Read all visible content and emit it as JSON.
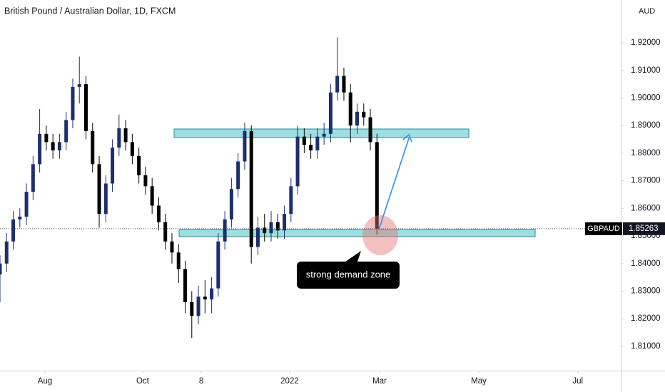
{
  "chart_data": {
    "type": "candlestick",
    "title": "British Pound / Australian Dollar, 1D, FXCM",
    "currency": "AUD",
    "symbol": "GBPAUD",
    "last_price": 1.85263,
    "annotation": "strong demand zone",
    "up_color": "#1c2f6e",
    "down_color": "#000000",
    "x": [
      0,
      3,
      6,
      9,
      12,
      15,
      18,
      21,
      24,
      27,
      30,
      33,
      36,
      39,
      42,
      45,
      48,
      51,
      54,
      57,
      60,
      63,
      66,
      69,
      72,
      75,
      78,
      81,
      84,
      87,
      90,
      93,
      96,
      99,
      102,
      105,
      108,
      111,
      114,
      117,
      120,
      123,
      126,
      129,
      132,
      135,
      138,
      141,
      144,
      147,
      150,
      153,
      156,
      159,
      162,
      165,
      168,
      171
    ],
    "open": [
      1.836,
      1.84,
      1.848,
      1.856,
      1.857,
      1.866,
      1.876,
      1.887,
      1.884,
      1.881,
      1.884,
      1.892,
      1.904,
      1.905,
      1.888,
      1.876,
      1.858,
      1.869,
      1.882,
      1.889,
      1.884,
      1.879,
      1.872,
      1.868,
      1.861,
      1.855,
      1.848,
      1.844,
      1.838,
      1.826,
      1.821,
      1.828,
      1.827,
      1.831,
      1.848,
      1.856,
      1.867,
      1.877,
      1.888,
      1.846,
      1.853,
      1.851,
      1.855,
      1.852,
      1.858,
      1.868,
      1.886,
      1.883,
      1.881,
      1.886,
      1.887,
      1.902,
      1.908,
      1.902,
      1.89,
      1.895,
      1.893,
      1.884
    ],
    "high": [
      1.843,
      1.851,
      1.859,
      1.86,
      1.869,
      1.879,
      1.896,
      1.89,
      1.887,
      1.887,
      1.895,
      1.907,
      1.915,
      1.908,
      1.891,
      1.879,
      1.872,
      1.885,
      1.894,
      1.892,
      1.887,
      1.882,
      1.875,
      1.871,
      1.864,
      1.858,
      1.851,
      1.847,
      1.841,
      1.83,
      1.832,
      1.834,
      1.835,
      1.851,
      1.859,
      1.871,
      1.88,
      1.891,
      1.89,
      1.857,
      1.858,
      1.859,
      1.858,
      1.861,
      1.871,
      1.89,
      1.889,
      1.887,
      1.889,
      1.891,
      1.905,
      1.922,
      1.911,
      1.905,
      1.898,
      1.898,
      1.896,
      1.887
    ],
    "low": [
      1.826,
      1.837,
      1.845,
      1.853,
      1.854,
      1.863,
      1.873,
      1.881,
      1.878,
      1.878,
      1.881,
      1.889,
      1.898,
      1.885,
      1.873,
      1.853,
      1.855,
      1.866,
      1.879,
      1.881,
      1.876,
      1.869,
      1.865,
      1.858,
      1.852,
      1.845,
      1.84,
      1.833,
      1.822,
      1.813,
      1.818,
      1.822,
      1.822,
      1.828,
      1.845,
      1.853,
      1.864,
      1.874,
      1.84,
      1.843,
      1.848,
      1.848,
      1.849,
      1.849,
      1.855,
      1.865,
      1.88,
      1.878,
      1.878,
      1.883,
      1.884,
      1.899,
      1.899,
      1.884,
      1.887,
      1.89,
      1.881,
      1.8505
    ],
    "close": [
      1.84,
      1.848,
      1.856,
      1.857,
      1.866,
      1.876,
      1.887,
      1.884,
      1.881,
      1.884,
      1.892,
      1.904,
      1.905,
      1.888,
      1.876,
      1.858,
      1.869,
      1.882,
      1.889,
      1.884,
      1.879,
      1.872,
      1.868,
      1.861,
      1.855,
      1.848,
      1.844,
      1.838,
      1.826,
      1.821,
      1.828,
      1.827,
      1.831,
      1.848,
      1.856,
      1.867,
      1.877,
      1.888,
      1.846,
      1.853,
      1.851,
      1.855,
      1.852,
      1.858,
      1.868,
      1.886,
      1.883,
      1.881,
      1.886,
      1.887,
      1.902,
      1.908,
      1.902,
      1.89,
      1.895,
      1.893,
      1.884,
      1.85263
    ],
    "xlim": [
      0,
      281.6
    ],
    "ylim": [
      1.8012,
      1.9355
    ],
    "xticks": [
      {
        "value": 20.4,
        "label": "Aug"
      },
      {
        "value": 64.7,
        "label": "Oct"
      },
      {
        "value": 91.3,
        "label": "8"
      },
      {
        "value": 131.4,
        "label": "2022"
      },
      {
        "value": 172.2,
        "label": "Mar"
      },
      {
        "value": 217.2,
        "label": "May"
      },
      {
        "value": 262.1,
        "label": "Jul"
      }
    ],
    "yticks": [
      {
        "value": 1.81,
        "label": "1.81000"
      },
      {
        "value": 1.82,
        "label": "1.82000"
      },
      {
        "value": 1.83,
        "label": "1.83000"
      },
      {
        "value": 1.84,
        "label": "1.84000"
      },
      {
        "value": 1.85,
        "label": "1.85000"
      },
      {
        "value": 1.86,
        "label": "1.86000"
      },
      {
        "value": 1.87,
        "label": "1.87000"
      },
      {
        "value": 1.88,
        "label": "1.88000"
      },
      {
        "value": 1.89,
        "label": "1.89000"
      },
      {
        "value": 1.9,
        "label": "1.90000"
      },
      {
        "value": 1.91,
        "label": "1.91000"
      },
      {
        "value": 1.92,
        "label": "1.92000"
      }
    ]
  }
}
